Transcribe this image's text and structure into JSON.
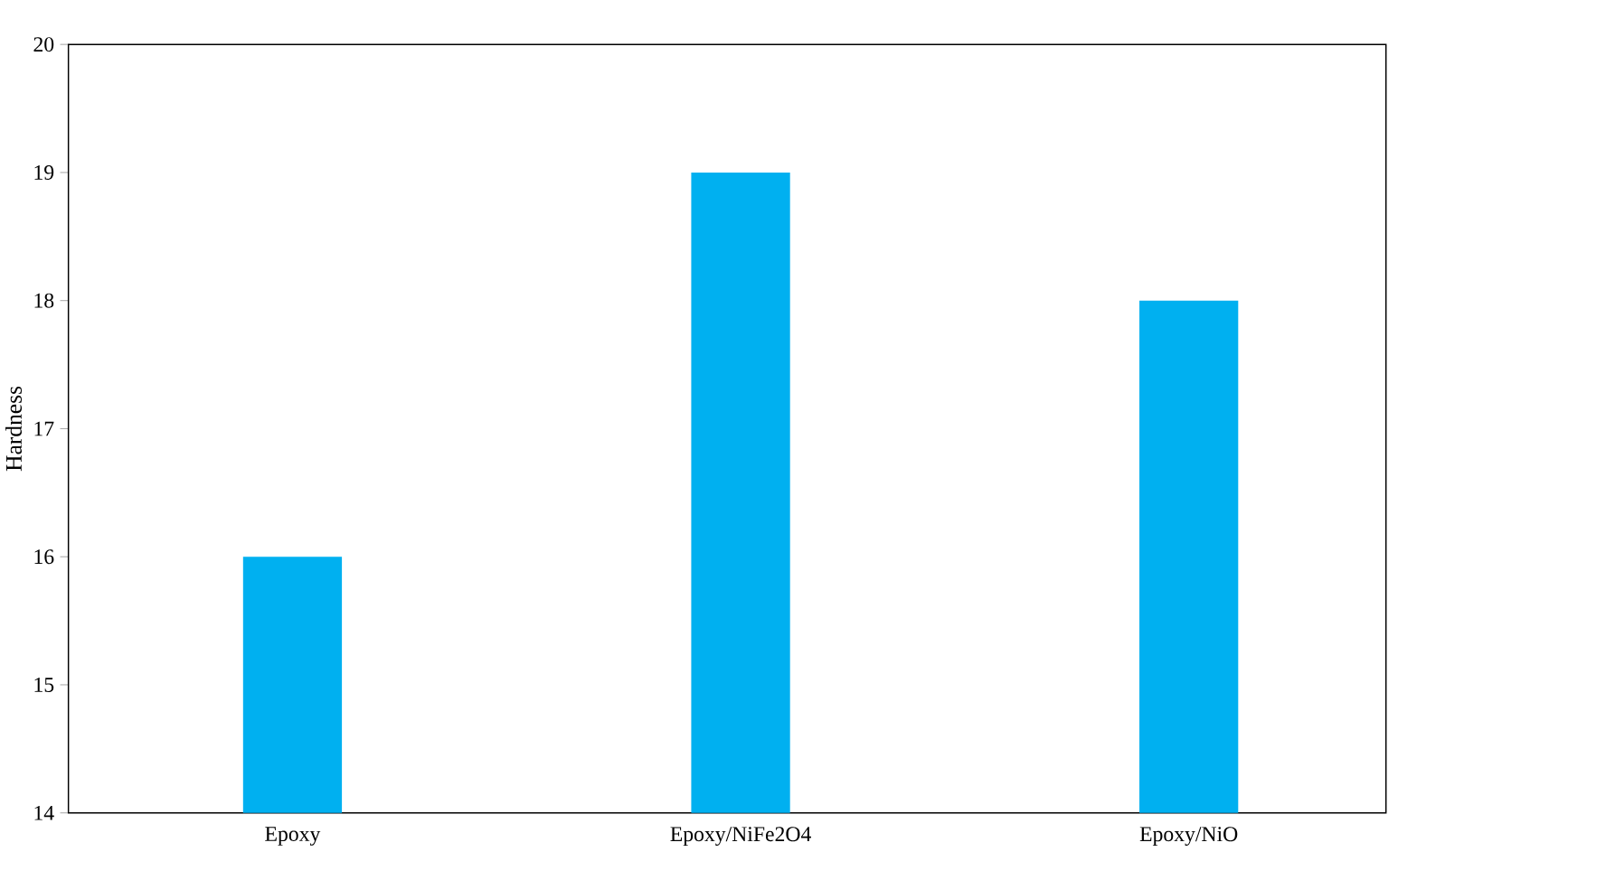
{
  "chart_data": {
    "type": "bar",
    "ylabel": "Hardness",
    "categories": [
      "Epoxy",
      "Epoxy/NiFe2O4",
      "Epoxy/NiO"
    ],
    "values": [
      16,
      19,
      18
    ],
    "color": "#00b0f0",
    "ylim": [
      14,
      20
    ],
    "yticks": [
      14,
      15,
      16,
      17,
      18,
      19,
      20
    ],
    "grid": false
  }
}
